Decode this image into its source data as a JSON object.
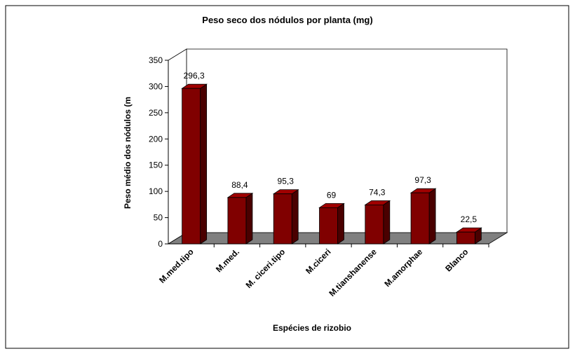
{
  "chart_data": {
    "type": "bar3d",
    "title": "Peso seco dos nódulos por planta (mg)",
    "ylabel": "Peso médio dos nódulos (m",
    "xlabel": "Espécies de rizobio",
    "categories": [
      "M.med.tipo",
      "M.med.",
      "M. ciceri.tipo",
      "M.ciceri",
      "M.tianshanense",
      "M.amorphae",
      "Blanco"
    ],
    "values": [
      296.3,
      88.4,
      95.3,
      69,
      74.3,
      97.3,
      22.5
    ],
    "value_labels": [
      "296,3",
      "88,4",
      "95,3",
      "69",
      "74,3",
      "97,3",
      "22,5"
    ],
    "color": "#800000",
    "ylim": [
      0,
      350
    ],
    "yticks": [
      0,
      50,
      100,
      150,
      200,
      250,
      300,
      350
    ],
    "grid": false
  }
}
